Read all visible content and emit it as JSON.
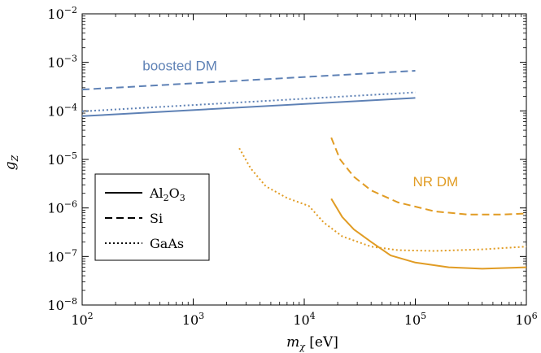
{
  "chart_data": {
    "type": "line",
    "xscale": "log",
    "yscale": "log",
    "xlim": [
      100,
      1000000
    ],
    "ylim": [
      1e-08,
      0.01
    ],
    "xlabel": "m_χ [eV]",
    "ylabel": "g_Z",
    "x_ticks": [
      {
        "value": 100,
        "base": "10",
        "exp": "2"
      },
      {
        "value": 1000,
        "base": "10",
        "exp": "3"
      },
      {
        "value": 10000,
        "base": "10",
        "exp": "4"
      },
      {
        "value": 100000,
        "base": "10",
        "exp": "5"
      },
      {
        "value": 1000000,
        "base": "10",
        "exp": "6"
      }
    ],
    "y_ticks": [
      {
        "value": 1e-08,
        "base": "10",
        "exp": "−8"
      },
      {
        "value": 1e-07,
        "base": "10",
        "exp": "−7"
      },
      {
        "value": 1e-06,
        "base": "10",
        "exp": "−6"
      },
      {
        "value": 1e-05,
        "base": "10",
        "exp": "−5"
      },
      {
        "value": 0.0001,
        "base": "10",
        "exp": "−4"
      },
      {
        "value": 0.001,
        "base": "10",
        "exp": "−3"
      },
      {
        "value": 0.01,
        "base": "10",
        "exp": "−2"
      }
    ],
    "annotations": [
      {
        "text": "boosted DM",
        "x": 350,
        "y": 0.00068,
        "color": "#5e81b5"
      },
      {
        "text": "NR DM",
        "x": 95000,
        "y": 2.8e-06,
        "color": "#e19c24"
      }
    ],
    "legend": {
      "placement": "left",
      "entries": [
        {
          "material": "Al2O3",
          "style": "solid"
        },
        {
          "material": "Si",
          "style": "dashed"
        },
        {
          "material": "GaAs",
          "style": "dotted"
        }
      ]
    },
    "series": [
      {
        "group": "boosted DM",
        "material": "Al2O3",
        "style": "solid",
        "color": "#5e81b5",
        "points": [
          [
            100,
            7.8e-05
          ],
          [
            100000,
            0.000185
          ]
        ]
      },
      {
        "group": "boosted DM",
        "material": "Si",
        "style": "dashed",
        "color": "#5e81b5",
        "points": [
          [
            100,
            0.000275
          ],
          [
            100000,
            0.00067
          ]
        ]
      },
      {
        "group": "boosted DM",
        "material": "GaAs",
        "style": "dotted",
        "color": "#5e81b5",
        "points": [
          [
            100,
            9.8e-05
          ],
          [
            100000,
            0.00024
          ]
        ]
      },
      {
        "group": "NR DM",
        "material": "Al2O3",
        "style": "solid",
        "color": "#e19c24",
        "points": [
          [
            17500,
            1.55e-06
          ],
          [
            22000,
            6.5e-07
          ],
          [
            28000,
            3.6e-07
          ],
          [
            40000,
            2e-07
          ],
          [
            60000,
            1.05e-07
          ],
          [
            100000,
            7.5e-08
          ],
          [
            200000,
            6e-08
          ],
          [
            400000,
            5.6e-08
          ],
          [
            1000000,
            6e-08
          ]
        ]
      },
      {
        "group": "NR DM",
        "material": "Si",
        "style": "dashed",
        "color": "#e19c24",
        "points": [
          [
            17500,
            2.8e-05
          ],
          [
            21000,
            1e-05
          ],
          [
            28000,
            4.4e-06
          ],
          [
            40000,
            2.3e-06
          ],
          [
            70000,
            1.3e-06
          ],
          [
            150000,
            8.5e-07
          ],
          [
            300000,
            7.3e-07
          ],
          [
            600000,
            7.3e-07
          ],
          [
            1000000,
            7.7e-07
          ]
        ]
      },
      {
        "group": "NR DM",
        "material": "GaAs",
        "style": "dotted",
        "color": "#e19c24",
        "points": [
          [
            2600,
            1.7e-05
          ],
          [
            3300,
            6.5e-06
          ],
          [
            4500,
            2.8e-06
          ],
          [
            7000,
            1.6e-06
          ],
          [
            11000,
            1.1e-06
          ],
          [
            15000,
            5e-07
          ],
          [
            22000,
            2.6e-07
          ],
          [
            40000,
            1.6e-07
          ],
          [
            70000,
            1.35e-07
          ],
          [
            150000,
            1.3e-07
          ],
          [
            400000,
            1.4e-07
          ],
          [
            1000000,
            1.6e-07
          ]
        ]
      }
    ]
  }
}
